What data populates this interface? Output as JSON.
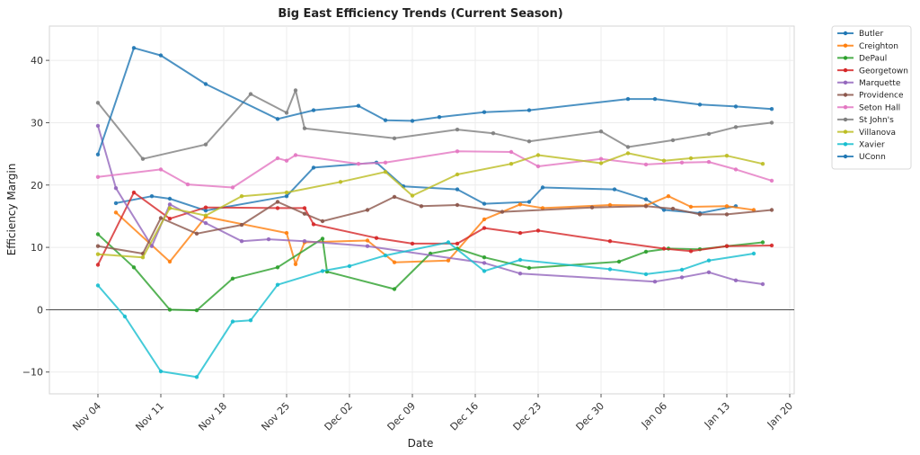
{
  "chart_data": {
    "type": "line",
    "title": "Big East Efficiency Trends (Current Season)",
    "xlabel": "Date",
    "ylabel": "Efficiency Margin",
    "x_unit": "days since Nov 04",
    "xlim": [
      -5.4,
      77.5
    ],
    "ylim": [
      -13.5,
      45.5
    ],
    "x_ticks": [
      {
        "x": 0,
        "label": "Nov 04"
      },
      {
        "x": 7,
        "label": "Nov 11"
      },
      {
        "x": 14,
        "label": "Nov 18"
      },
      {
        "x": 21,
        "label": "Nov 25"
      },
      {
        "x": 28,
        "label": "Dec 02"
      },
      {
        "x": 35,
        "label": "Dec 09"
      },
      {
        "x": 42,
        "label": "Dec 16"
      },
      {
        "x": 49,
        "label": "Dec 23"
      },
      {
        "x": 56,
        "label": "Dec 30"
      },
      {
        "x": 63,
        "label": "Jan 06"
      },
      {
        "x": 70,
        "label": "Jan 13"
      },
      {
        "x": 77,
        "label": "Jan 20"
      }
    ],
    "y_ticks": [
      {
        "y": -10,
        "label": "−10"
      },
      {
        "y": 0,
        "label": "0"
      },
      {
        "y": 10,
        "label": "10"
      },
      {
        "y": 20,
        "label": "20"
      },
      {
        "y": 30,
        "label": "30"
      },
      {
        "y": 40,
        "label": "40"
      }
    ],
    "grid": true,
    "zero_line": true,
    "legend_position": "outside-right-top",
    "series": [
      {
        "name": "Butler",
        "color": "#1f77b4",
        "x": [
          2,
          6,
          8,
          12,
          21,
          24,
          31,
          34,
          40,
          43,
          48,
          49.5,
          57.5,
          61,
          63,
          67,
          71
        ],
        "y": [
          17.1,
          18.2,
          17.8,
          15.9,
          18.2,
          22.8,
          23.6,
          19.8,
          19.3,
          17.0,
          17.3,
          19.6,
          19.3,
          17.7,
          16.0,
          15.5,
          16.6
        ]
      },
      {
        "name": "Creighton",
        "color": "#ff7f0e",
        "x": [
          2,
          8,
          12,
          21,
          22,
          23,
          30,
          33,
          39,
          43,
          47,
          49.5,
          57,
          61,
          63.5,
          66,
          70,
          73
        ],
        "y": [
          15.6,
          7.7,
          14.9,
          12.3,
          7.3,
          10.8,
          11.1,
          7.6,
          7.9,
          14.5,
          16.9,
          16.3,
          16.8,
          16.7,
          18.2,
          16.5,
          16.6,
          16.0
        ]
      },
      {
        "name": "DePaul",
        "color": "#2ca02c",
        "x": [
          0,
          4,
          8,
          11,
          15,
          20,
          25,
          25.5,
          33,
          37,
          40,
          43,
          48,
          58,
          61,
          63.5,
          67,
          70,
          74
        ],
        "y": [
          12.1,
          6.8,
          0.0,
          -0.1,
          5.0,
          6.8,
          11.4,
          6.1,
          3.3,
          9.0,
          9.8,
          8.4,
          6.7,
          7.7,
          9.3,
          9.8,
          9.7,
          10.2,
          10.8
        ]
      },
      {
        "name": "Georgetown",
        "color": "#d62728",
        "x": [
          0,
          4,
          8,
          12,
          20,
          23,
          24,
          31,
          35,
          40,
          43,
          47,
          49,
          57,
          63,
          66,
          70,
          75
        ],
        "y": [
          7.2,
          18.8,
          14.6,
          16.4,
          16.3,
          16.3,
          13.7,
          11.5,
          10.6,
          10.6,
          13.1,
          12.3,
          12.7,
          11.0,
          9.8,
          9.4,
          10.2,
          10.3
        ]
      },
      {
        "name": "Marquette",
        "color": "#9467bd",
        "x": [
          0,
          2,
          6,
          8,
          12,
          16,
          19,
          23,
          30,
          43,
          47,
          62,
          65,
          68,
          71,
          74
        ],
        "y": [
          29.5,
          19.5,
          10.2,
          16.9,
          13.9,
          11.0,
          11.3,
          11.0,
          10.2,
          7.5,
          5.8,
          4.5,
          5.2,
          6.0,
          4.7,
          4.1
        ]
      },
      {
        "name": "Providence",
        "color": "#8c564b",
        "x": [
          0,
          5,
          7,
          11,
          16,
          20,
          23,
          25,
          30,
          33,
          36,
          40,
          45,
          55,
          61,
          64,
          67,
          70,
          75
        ],
        "y": [
          10.2,
          9.0,
          14.7,
          12.2,
          13.6,
          17.3,
          15.4,
          14.2,
          16.0,
          18.1,
          16.6,
          16.8,
          15.7,
          16.4,
          16.6,
          16.2,
          15.3,
          15.3,
          16.0
        ]
      },
      {
        "name": "Seton Hall",
        "color": "#e377c2",
        "x": [
          0,
          7,
          10,
          15,
          20,
          21,
          22,
          29,
          32,
          40,
          46,
          49,
          56,
          61,
          65,
          68,
          71,
          75
        ],
        "y": [
          21.3,
          22.5,
          20.1,
          19.6,
          24.3,
          23.9,
          24.8,
          23.4,
          23.6,
          25.4,
          25.3,
          23.0,
          24.2,
          23.3,
          23.6,
          23.7,
          22.5,
          20.7
        ]
      },
      {
        "name": "St John's",
        "color": "#7f7f7f",
        "x": [
          0,
          5,
          12,
          17,
          21,
          22,
          23,
          33,
          40,
          44,
          48,
          56,
          59,
          64,
          68,
          71,
          75
        ],
        "y": [
          33.2,
          24.2,
          26.5,
          34.6,
          31.6,
          35.2,
          29.1,
          27.5,
          28.9,
          28.3,
          27.0,
          28.6,
          26.1,
          27.2,
          28.2,
          29.3,
          30.0
        ]
      },
      {
        "name": "Villanova",
        "color": "#bcbd22",
        "x": [
          0,
          5,
          8,
          12,
          16,
          21,
          27,
          32,
          35,
          40,
          46,
          49,
          56,
          59,
          63,
          66,
          70,
          74
        ],
        "y": [
          8.9,
          8.4,
          16.3,
          15.1,
          18.2,
          18.8,
          20.5,
          22.1,
          18.3,
          21.7,
          23.4,
          24.8,
          23.5,
          25.1,
          23.9,
          24.3,
          24.7,
          23.4
        ]
      },
      {
        "name": "Xavier",
        "color": "#17becf",
        "x": [
          0,
          3,
          7,
          11,
          15,
          17,
          20,
          25,
          28,
          32,
          39,
          43,
          47,
          57,
          61,
          65,
          68,
          73
        ],
        "y": [
          3.9,
          -1.1,
          -9.9,
          -10.8,
          -1.9,
          -1.7,
          4.0,
          6.2,
          7.0,
          8.7,
          10.8,
          6.2,
          8.0,
          6.5,
          5.7,
          6.4,
          7.9,
          9.0
        ]
      },
      {
        "name": "UConn",
        "color": "#1f77b4",
        "x": [
          0,
          4,
          7,
          12,
          20,
          24,
          29,
          32,
          35,
          38,
          43,
          48,
          59,
          62,
          67,
          71,
          75
        ],
        "y": [
          24.9,
          42.0,
          40.8,
          36.2,
          30.6,
          32.0,
          32.7,
          30.4,
          30.3,
          30.9,
          31.7,
          32.0,
          33.8,
          33.8,
          32.9,
          32.6,
          32.2
        ]
      }
    ]
  }
}
